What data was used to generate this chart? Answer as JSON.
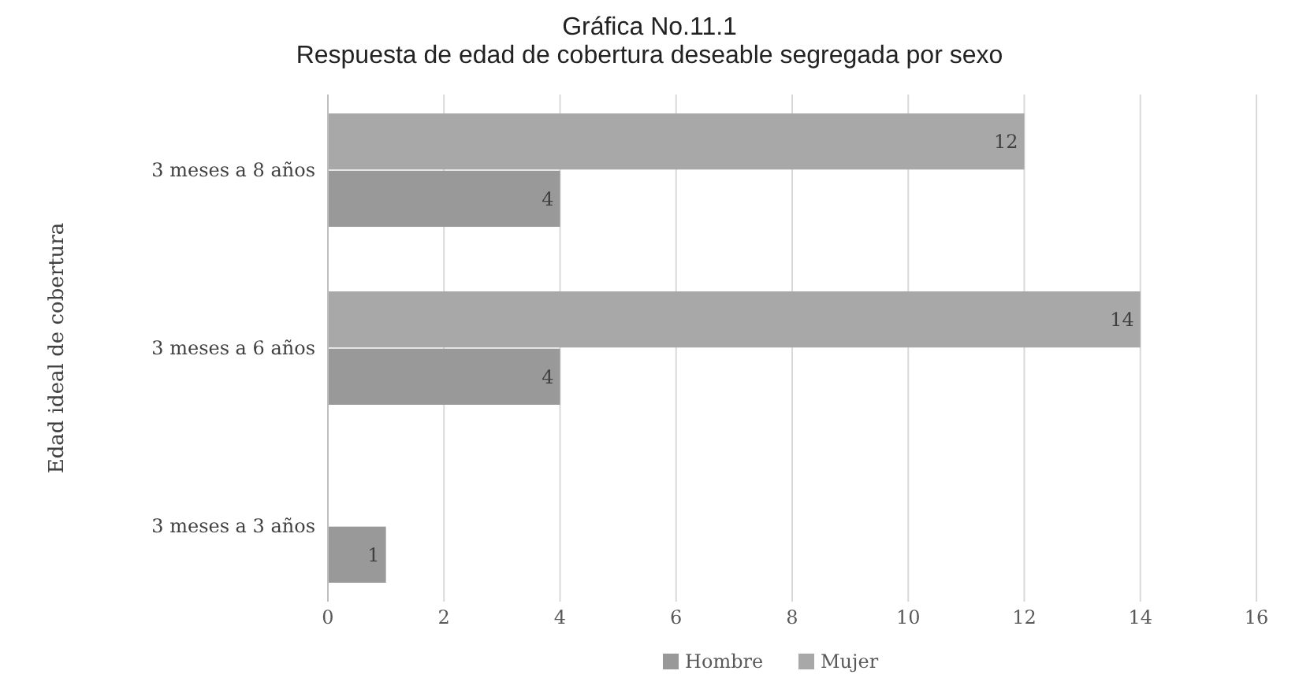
{
  "chart_data": {
    "type": "bar",
    "orientation": "horizontal",
    "title": "Gráfica No.11.1",
    "subtitle": "Respuesta de edad de cobertura deseable segregada por sexo",
    "ylabel": "Edad ideal de cobertura",
    "categories": [
      "3 meses a 8 años",
      "3 meses a 6 años",
      "3 meses a 3 años"
    ],
    "series": [
      {
        "name": "Hombre",
        "color": "#999999",
        "values": [
          4,
          4,
          1
        ]
      },
      {
        "name": "Mujer",
        "color": "#a8a8a8",
        "values": [
          12,
          14,
          null
        ]
      }
    ],
    "xlim": [
      0,
      16
    ],
    "xticks": [
      0,
      2,
      4,
      6,
      8,
      10,
      12,
      14,
      16
    ],
    "grid": "x",
    "legend": "bottom",
    "data_labels": true
  }
}
